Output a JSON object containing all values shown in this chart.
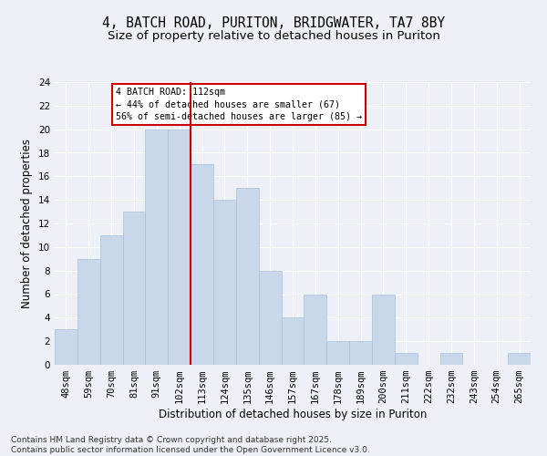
{
  "title1": "4, BATCH ROAD, PURITON, BRIDGWATER, TA7 8BY",
  "title2": "Size of property relative to detached houses in Puriton",
  "xlabel": "Distribution of detached houses by size in Puriton",
  "ylabel": "Number of detached properties",
  "bar_color": "#c8d8ea",
  "bar_edge_color": "#aac0d8",
  "categories": [
    "48sqm",
    "59sqm",
    "70sqm",
    "81sqm",
    "91sqm",
    "102sqm",
    "113sqm",
    "124sqm",
    "135sqm",
    "146sqm",
    "157sqm",
    "167sqm",
    "178sqm",
    "189sqm",
    "200sqm",
    "211sqm",
    "222sqm",
    "232sqm",
    "243sqm",
    "254sqm",
    "265sqm"
  ],
  "values": [
    3,
    9,
    11,
    13,
    20,
    20,
    17,
    14,
    15,
    8,
    4,
    6,
    2,
    2,
    6,
    1,
    0,
    1,
    0,
    0,
    1
  ],
  "vline_position": 6,
  "vline_color": "#cc0000",
  "annotation_text": "4 BATCH ROAD: 112sqm\n← 44% of detached houses are smaller (67)\n56% of semi-detached houses are larger (85) →",
  "annotation_box_color": "#ffffff",
  "annotation_box_edge": "#cc0000",
  "ylim": [
    0,
    24
  ],
  "yticks": [
    0,
    2,
    4,
    6,
    8,
    10,
    12,
    14,
    16,
    18,
    20,
    22,
    24
  ],
  "footnote": "Contains HM Land Registry data © Crown copyright and database right 2025.\nContains public sector information licensed under the Open Government Licence v3.0.",
  "background_color": "#edf1f7",
  "plot_background": "#edf1f7",
  "grid_color": "#ffffff",
  "title_fontsize": 10.5,
  "subtitle_fontsize": 9.5,
  "axis_label_fontsize": 8.5,
  "tick_fontsize": 7.5,
  "footnote_fontsize": 6.5
}
